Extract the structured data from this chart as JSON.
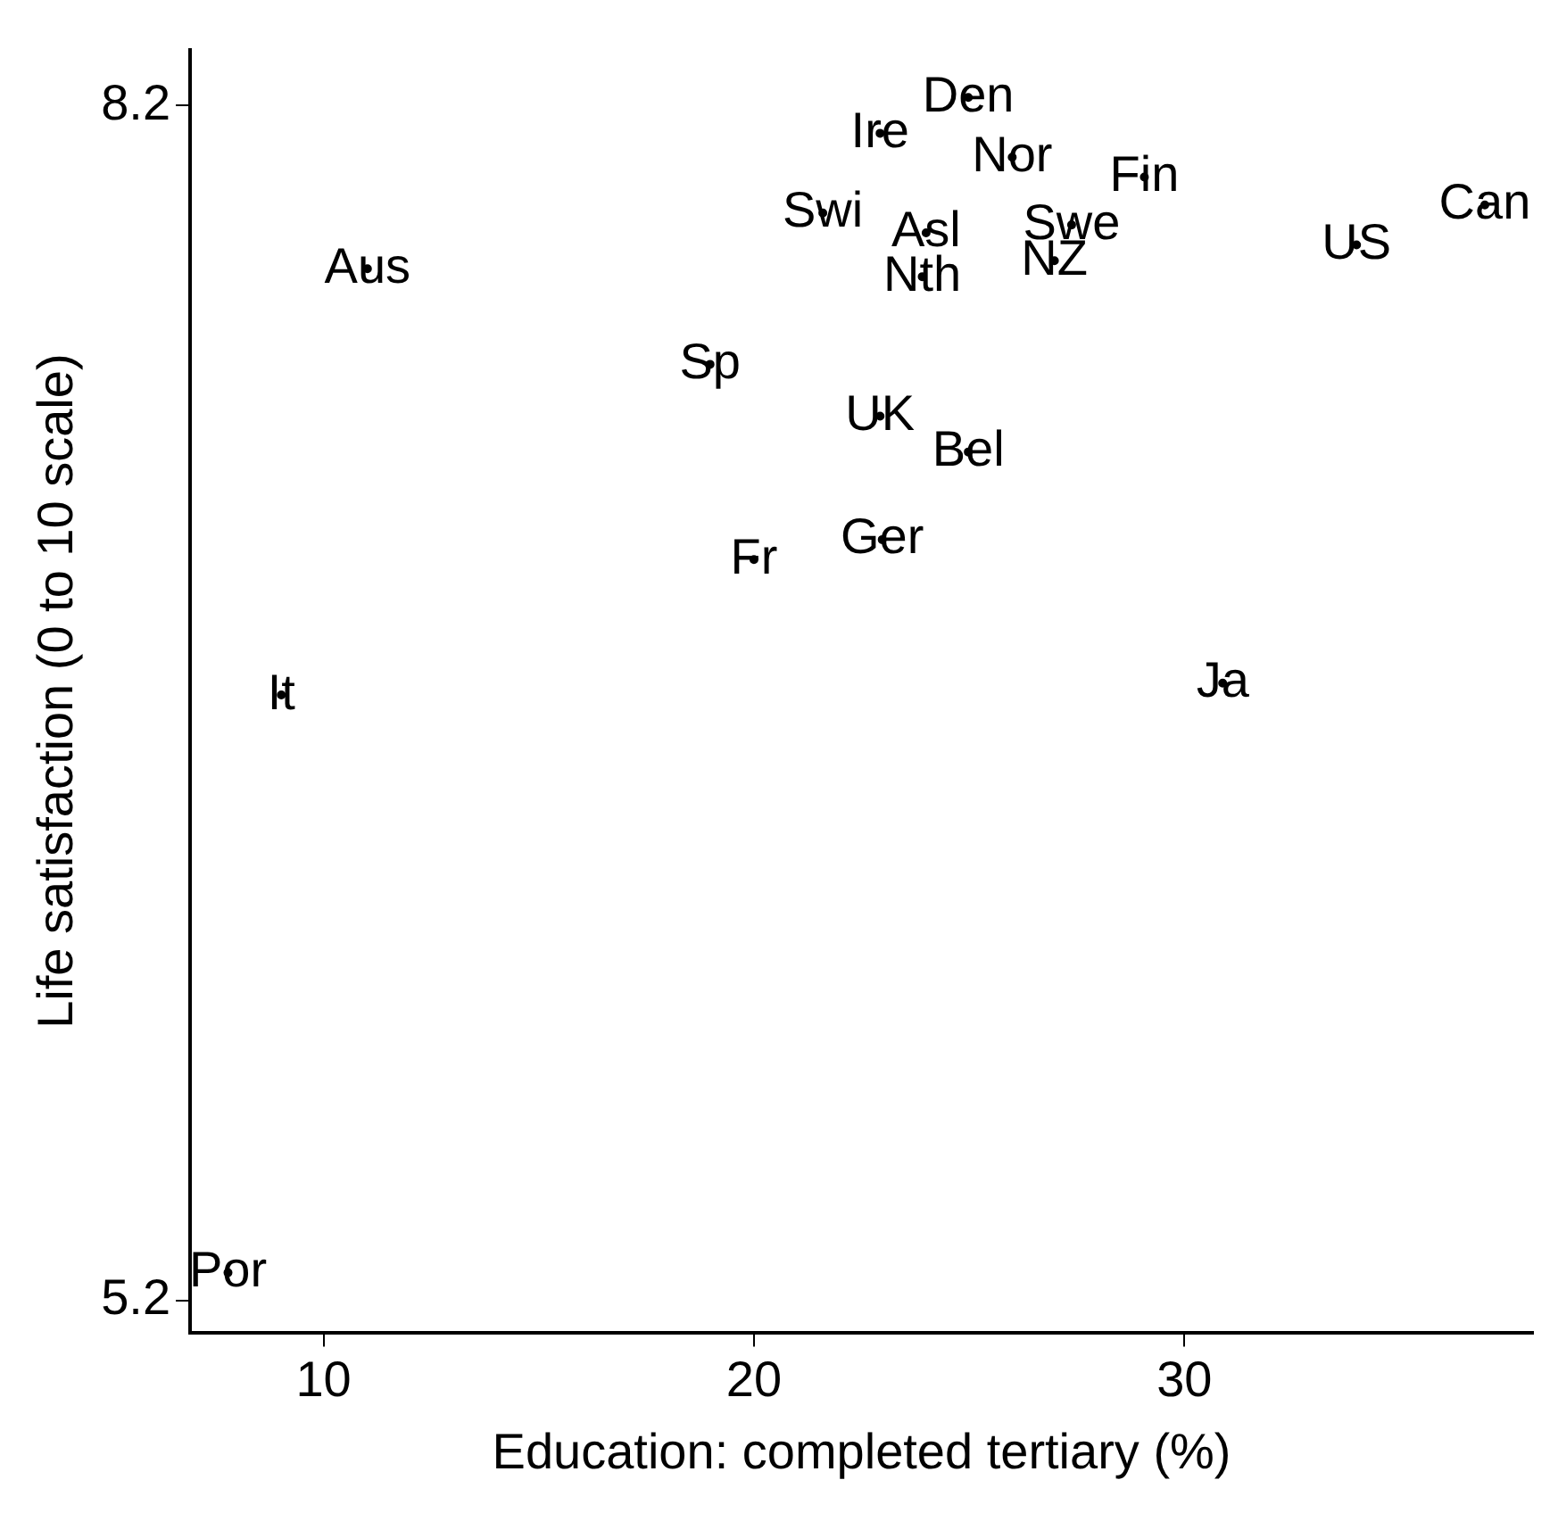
{
  "chart_data": {
    "type": "scatter",
    "xlabel": "Education: completed tertiary (%)",
    "ylabel": "Life satisfaction (0 to 10 scale)",
    "xlim": [
      6.9,
      38.1
    ],
    "ylim": [
      5.12,
      8.34
    ],
    "xticks": [
      10,
      20,
      30
    ],
    "yticks": [
      5.2,
      8.2
    ],
    "grid": false,
    "legend": false,
    "marker": "circle",
    "series": [
      {
        "color": "#000000",
        "x": [
          24.98,
          22.93,
          26.0,
          29.07,
          36.98,
          21.6,
          24.0,
          27.38,
          34.0,
          11.02,
          23.91,
          26.98,
          18.98,
          22.93,
          24.98,
          22.98,
          20.0,
          9.02,
          30.89,
          7.78
        ],
        "values": [
          8.22,
          8.13,
          8.07,
          8.02,
          7.95,
          7.93,
          7.88,
          7.9,
          7.85,
          7.79,
          7.77,
          7.81,
          7.55,
          7.42,
          7.33,
          7.11,
          7.06,
          6.72,
          6.75,
          5.27
        ],
        "value_labels": [
          "Den",
          "Ire",
          "Nor",
          "Fin",
          "Can",
          "Swi",
          "Asl",
          "Swe",
          "US",
          "Aus",
          "Nth",
          "NZ",
          "Sp",
          "UK",
          "Bel",
          "Ger",
          "Fr",
          "It",
          "Ja",
          "Por"
        ]
      }
    ]
  }
}
